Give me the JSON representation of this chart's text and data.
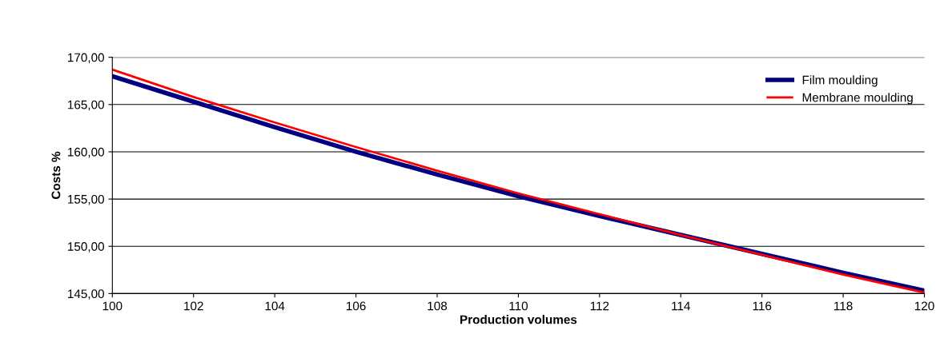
{
  "chart_data": {
    "type": "line",
    "xlabel": "Production volumes",
    "ylabel": "Costs %",
    "x": [
      100,
      102,
      104,
      106,
      108,
      110,
      112,
      114,
      116,
      118,
      120
    ],
    "series": [
      {
        "name": "Film moulding",
        "color": "#000080",
        "values": [
          168.0,
          165.3,
          162.6,
          160.0,
          157.6,
          155.3,
          153.2,
          151.2,
          149.2,
          147.2,
          145.3
        ]
      },
      {
        "name": "Membrane moulding",
        "color": "#ff0000",
        "values": [
          168.7,
          165.8,
          163.1,
          160.5,
          158.0,
          155.6,
          153.4,
          151.2,
          149.1,
          147.0,
          145.1
        ]
      }
    ],
    "xlim": [
      100,
      120
    ],
    "xticks": [
      100,
      102,
      104,
      106,
      108,
      110,
      112,
      114,
      116,
      118,
      120
    ],
    "ylim": [
      145,
      170
    ],
    "yticks": [
      {
        "value": 145,
        "label": "145,00"
      },
      {
        "value": 150,
        "label": "150,00"
      },
      {
        "value": 155,
        "label": "155,00"
      },
      {
        "value": 160,
        "label": "160,00"
      },
      {
        "value": 165,
        "label": "165,00"
      },
      {
        "value": 170,
        "label": "170,00"
      }
    ],
    "grid": "y",
    "legend": "top right",
    "marker": "none",
    "line_style": "solid"
  }
}
